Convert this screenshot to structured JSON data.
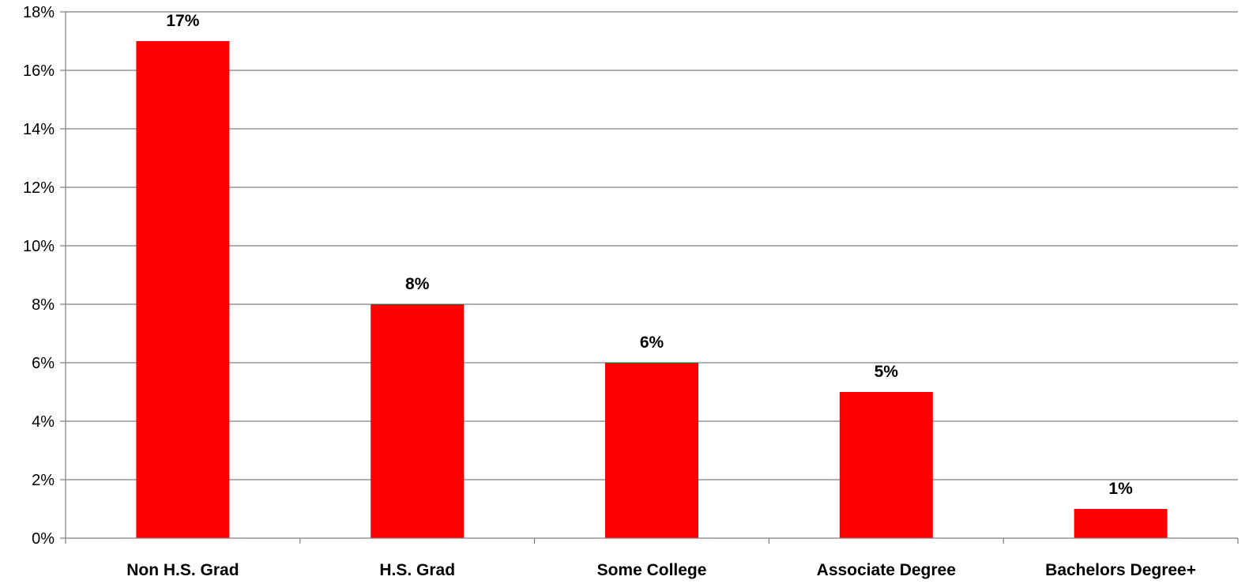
{
  "chart_data": {
    "type": "bar",
    "categories": [
      "Non H.S. Grad",
      "H.S. Grad",
      "Some College",
      "Associate Degree",
      "Bachelors Degree+"
    ],
    "values": [
      17,
      8,
      6,
      5,
      1
    ],
    "data_labels": [
      "17%",
      "8%",
      "6%",
      "5%",
      "1%"
    ],
    "y_ticks": [
      0,
      2,
      4,
      6,
      8,
      10,
      12,
      14,
      16,
      18
    ],
    "y_tick_labels": [
      "0%",
      "2%",
      "4%",
      "6%",
      "8%",
      "10%",
      "12%",
      "14%",
      "16%",
      "18%"
    ],
    "ylim": [
      0,
      18
    ],
    "title": "",
    "xlabel": "",
    "ylabel": "",
    "grid": true,
    "legend": false,
    "bar_color": "#ff0000",
    "grid_color": "#7f7f7f"
  }
}
